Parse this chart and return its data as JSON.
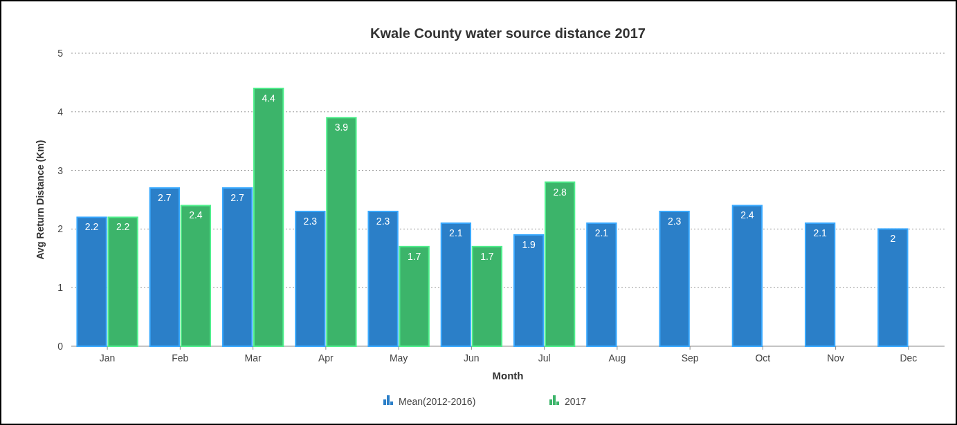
{
  "chart_data": {
    "type": "bar",
    "title": "Kwale County water source distance 2017",
    "xlabel": "Month",
    "ylabel": "Avg Return Distance (Km)",
    "categories": [
      "Jan",
      "Feb",
      "Mar",
      "Apr",
      "May",
      "Jun",
      "Jul",
      "Aug",
      "Sep",
      "Oct",
      "Nov",
      "Dec"
    ],
    "series": [
      {
        "name": "Mean(2012-2016)",
        "color": "#2b7fc8",
        "values": [
          2.2,
          2.7,
          2.7,
          2.3,
          2.3,
          2.1,
          1.9,
          2.1,
          2.3,
          2.4,
          2.1,
          2
        ]
      },
      {
        "name": "2017",
        "color": "#3cb46a",
        "values": [
          2.2,
          2.4,
          4.4,
          3.9,
          1.7,
          1.7,
          2.8,
          null,
          null,
          null,
          null,
          null
        ]
      }
    ],
    "ylim": [
      0,
      5
    ],
    "yticks": [
      0,
      1,
      2,
      3,
      4,
      5
    ],
    "grid": "y",
    "legend": "bottom",
    "data_labels": true
  }
}
